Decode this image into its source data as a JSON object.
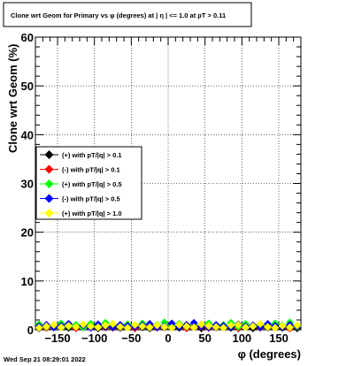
{
  "chart_data": {
    "type": "scatter",
    "title": "Clone wrt Geom for Primary vs φ (degrees) at |  η | <= 1.0 at pT > 0.11",
    "xlabel": "φ (degrees)",
    "ylabel": "Clone wrt Geom (%)",
    "xlim": [
      -180,
      180
    ],
    "ylim": [
      0,
      60
    ],
    "x_ticks": [
      -150,
      -100,
      -50,
      0,
      50,
      100,
      150
    ],
    "x_tick_labels": [
      "−150",
      "−100",
      "−50",
      "0",
      "50",
      "100",
      "150"
    ],
    "y_ticks": [
      0,
      10,
      20,
      30,
      40,
      50,
      60
    ],
    "y_tick_labels": [
      "0",
      "10",
      "20",
      "30",
      "40",
      "50",
      "60"
    ],
    "grid": true,
    "legend_position": "left-middle",
    "timestamp": "Wed Sep 21 08:29:01 2022",
    "series": [
      {
        "name": "(+) with pT/|q| > 0.1",
        "color": "#000000",
        "marker": "diamond",
        "x": [
          -175,
          -165,
          -155,
          -145,
          -135,
          -125,
          -115,
          -105,
          -95,
          -85,
          -75,
          -65,
          -55,
          -45,
          -35,
          -25,
          -15,
          -5,
          5,
          15,
          25,
          35,
          45,
          55,
          65,
          75,
          85,
          95,
          105,
          115,
          125,
          135,
          145,
          155,
          165,
          175
        ],
        "y": [
          0.3,
          0.8,
          0.5,
          1.0,
          0.4,
          0.7,
          0.6,
          0.9,
          0.3,
          0.5,
          0.8,
          0.4,
          0.6,
          0.9,
          0.5,
          0.3,
          0.7,
          0.5,
          0.8,
          0.4,
          1.0,
          0.6,
          0.3,
          0.7,
          0.5,
          0.9,
          0.4,
          0.6,
          0.8,
          0.3,
          0.7,
          0.5,
          0.9,
          0.4,
          0.6,
          0.3
        ]
      },
      {
        "name": "(-) with pT/|q| > 0.1",
        "color": "#ff0000",
        "marker": "diamond",
        "x": [
          -175,
          -165,
          -155,
          -145,
          -135,
          -125,
          -115,
          -105,
          -95,
          -85,
          -75,
          -65,
          -55,
          -45,
          -35,
          -25,
          -15,
          -5,
          5,
          15,
          25,
          35,
          45,
          55,
          65,
          75,
          85,
          95,
          105,
          115,
          125,
          135,
          145,
          155,
          165,
          175
        ],
        "y": [
          0.5,
          0.4,
          0.9,
          0.6,
          0.8,
          0.3,
          0.7,
          0.5,
          0.9,
          0.6,
          0.4,
          0.8,
          0.5,
          0.3,
          0.7,
          0.9,
          0.4,
          0.6,
          0.5,
          0.8,
          0.3,
          0.7,
          0.6,
          0.4,
          0.9,
          0.5,
          0.7,
          0.3,
          0.6,
          0.8,
          0.4,
          0.9,
          0.5,
          0.7,
          0.3,
          0.6
        ]
      },
      {
        "name": "(+) with pT/|q| > 0.5",
        "color": "#00ff00",
        "marker": "diamond",
        "x": [
          -175,
          -165,
          -155,
          -145,
          -135,
          -125,
          -115,
          -105,
          -95,
          -85,
          -75,
          -65,
          -55,
          -45,
          -35,
          -25,
          -15,
          -5,
          5,
          15,
          25,
          35,
          45,
          55,
          65,
          75,
          85,
          95,
          105,
          115,
          125,
          135,
          145,
          155,
          165,
          175
        ],
        "y": [
          1.1,
          0.6,
          0.9,
          1.3,
          0.7,
          1.0,
          0.5,
          1.2,
          0.8,
          1.4,
          0.6,
          0.9,
          1.1,
          0.7,
          1.3,
          0.5,
          1.0,
          1.5,
          0.8,
          1.2,
          0.6,
          1.1,
          0.9,
          1.3,
          0.7,
          1.0,
          1.4,
          0.6,
          1.2,
          0.8,
          1.1,
          0.7,
          1.3,
          0.9,
          1.5,
          0.6
        ]
      },
      {
        "name": "(-) with pT/|q| > 0.5",
        "color": "#0000ff",
        "marker": "diamond",
        "x": [
          -175,
          -165,
          -155,
          -145,
          -135,
          -125,
          -115,
          -105,
          -95,
          -85,
          -75,
          -65,
          -55,
          -45,
          -35,
          -25,
          -15,
          -5,
          5,
          15,
          25,
          35,
          45,
          55,
          65,
          75,
          85,
          95,
          105,
          115,
          125,
          135,
          145,
          155,
          165,
          175
        ],
        "y": [
          0.7,
          1.0,
          0.5,
          0.8,
          1.2,
          0.6,
          0.9,
          0.4,
          1.1,
          0.7,
          0.5,
          1.0,
          0.8,
          0.6,
          0.9,
          1.2,
          0.5,
          0.7,
          1.3,
          0.6,
          0.9,
          1.4,
          0.7,
          0.5,
          1.0,
          0.8,
          0.6,
          1.1,
          0.7,
          0.9,
          0.5,
          1.2,
          0.8,
          0.6,
          1.0,
          0.7
        ]
      },
      {
        "name": "(+) with pT/|q| > 1.0",
        "color": "#ffff00",
        "marker": "diamond",
        "x": [
          -175,
          -165,
          -155,
          -145,
          -135,
          -125,
          -115,
          -105,
          -95,
          -85,
          -75,
          -65,
          -55,
          -45,
          -35,
          -25,
          -15,
          -5,
          5,
          15,
          25,
          35,
          45,
          55,
          65,
          75,
          85,
          95,
          105,
          115,
          125,
          135,
          145,
          155,
          165,
          175
        ],
        "y": [
          0.4,
          0.7,
          1.0,
          0.5,
          0.8,
          0.6,
          1.1,
          0.7,
          0.5,
          0.9,
          1.2,
          0.6,
          0.4,
          1.0,
          0.7,
          0.5,
          0.9,
          0.6,
          0.4,
          1.0,
          0.7,
          0.5,
          1.1,
          0.8,
          0.6,
          0.4,
          0.9,
          1.0,
          0.5,
          0.7,
          1.2,
          0.6,
          0.4,
          0.8,
          0.5,
          0.9
        ]
      }
    ]
  }
}
